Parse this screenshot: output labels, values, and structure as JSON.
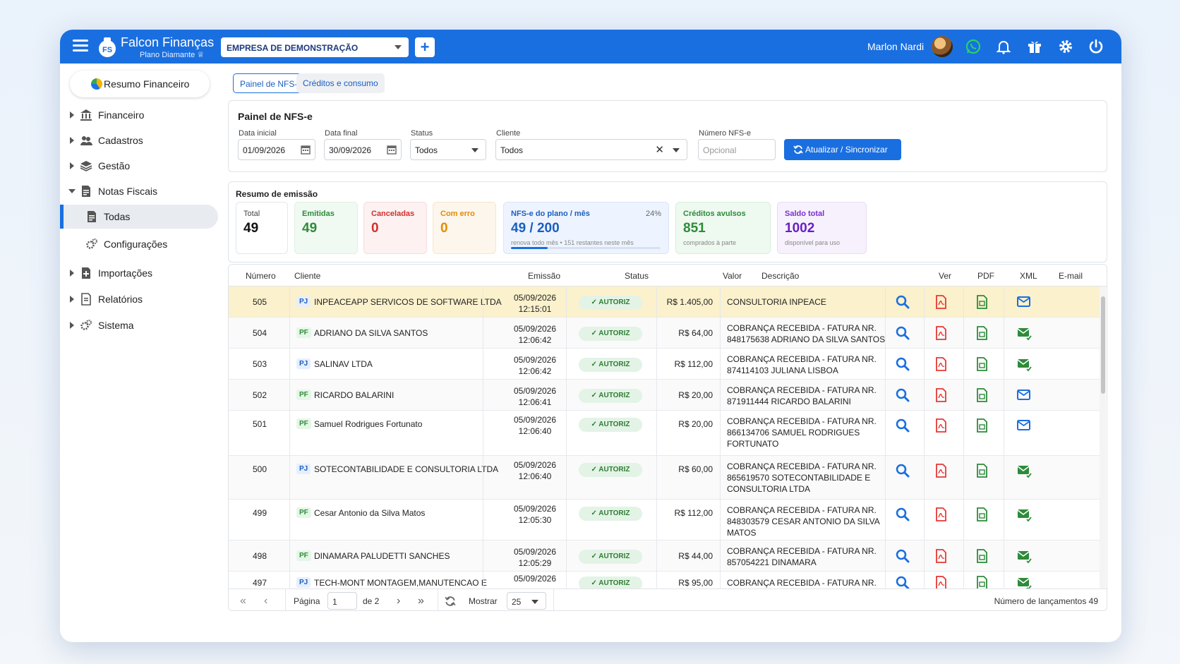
{
  "app": {
    "brand_name": "Falcon Finanças",
    "brand_plan": "Plano Diamante",
    "company": "EMPRESA DE DEMONSTRAÇÃO",
    "add_label": "+",
    "user_name": "Marlon Nardi",
    "accent_color": "#1a6fe0"
  },
  "sidebar": {
    "resumo_label": "Resumo Financeiro",
    "items": [
      {
        "label": "Financeiro",
        "icon": "bank-icon"
      },
      {
        "label": "Cadastros",
        "icon": "users-icon"
      },
      {
        "label": "Gestão",
        "icon": "layers-icon"
      },
      {
        "label": "Notas Fiscais",
        "icon": "invoice-icon"
      },
      {
        "label": "Todas",
        "icon": "document-icon"
      },
      {
        "label": "Configurações",
        "icon": "gears-icon"
      },
      {
        "label": "Importações",
        "icon": "import-icon"
      },
      {
        "label": "Relatórios",
        "icon": "report-icon"
      },
      {
        "label": "Sistema",
        "icon": "gears-icon"
      }
    ]
  },
  "tabs": [
    "Painel de NFS-e",
    "Créditos e consumo"
  ],
  "filters": {
    "title": "Painel de NFS-e",
    "data_inicial_label": "Data inicial",
    "data_inicial": "01/09/2026",
    "data_final_label": "Data final",
    "data_final": "30/09/2026",
    "status_label": "Status",
    "status": "Todos",
    "cliente_label": "Cliente",
    "cliente": "Todos",
    "numero_label": "Número NFS-e",
    "numero_placeholder": "Opcional",
    "sync_label": "Atualizar / Sincronizar"
  },
  "summary": {
    "title": "Resumo de emissão",
    "total_label": "Total",
    "total": "49",
    "emitidas_label": "Emitidas",
    "emitidas": "49",
    "canceladas_label": "Canceladas",
    "canceladas": "0",
    "erro_label": "Com erro",
    "erro": "0",
    "plano_label": "NFS-e do plano / mês",
    "plano_pct": "24%",
    "plano_value": "49 / 200",
    "plano_sub": "renova todo mês • 151 restantes neste mês",
    "plano_progress": 0.245,
    "avulsos_label": "Créditos avulsos",
    "avulsos": "851",
    "avulsos_sub": "comprados à parte",
    "saldo_label": "Saldo total",
    "saldo": "1002",
    "saldo_sub": "disponível para uso"
  },
  "table": {
    "headers": {
      "numero": "Número",
      "cliente": "Cliente",
      "emissao": "Emissão",
      "status": "Status",
      "valor": "Valor",
      "descricao": "Descrição",
      "ver": "Ver",
      "pdf": "PDF",
      "xml": "XML",
      "email": "E-mail"
    },
    "rows": [
      {
        "numero": "505",
        "tipo": "PJ",
        "cliente": "INPEACEAPP SERVICOS DE SOFTWARE LTDA",
        "data": "05/09/2026",
        "hora": "12:15:01",
        "status": "✓ AUTORIZ",
        "valor": "R$ 1.405,00",
        "descricao": [
          "CONSULTORIA INPEACE"
        ],
        "email_sent": false
      },
      {
        "numero": "504",
        "tipo": "PF",
        "cliente": "ADRIANO DA SILVA SANTOS",
        "data": "05/09/2026",
        "hora": "12:06:42",
        "status": "✓ AUTORIZ",
        "valor": "R$ 64,00",
        "descricao": [
          "COBRANÇA RECEBIDA - FATURA NR.",
          "848175638 ADRIANO DA SILVA SANTOS"
        ],
        "email_sent": true
      },
      {
        "numero": "503",
        "tipo": "PJ",
        "cliente": "SALINAV LTDA",
        "data": "05/09/2026",
        "hora": "12:06:42",
        "status": "✓ AUTORIZ",
        "valor": "R$ 112,00",
        "descricao": [
          "COBRANÇA RECEBIDA - FATURA NR.",
          "874114103 JULIANA LISBOA"
        ],
        "email_sent": true
      },
      {
        "numero": "502",
        "tipo": "PF",
        "cliente": "RICARDO BALARINI",
        "data": "05/09/2026",
        "hora": "12:06:41",
        "status": "✓ AUTORIZ",
        "valor": "R$ 20,00",
        "descricao": [
          "COBRANÇA RECEBIDA - FATURA NR.",
          "871911444 RICARDO BALARINI"
        ],
        "email_sent": false
      },
      {
        "numero": "501",
        "tipo": "PF",
        "cliente": "Samuel Rodrigues Fortunato",
        "data": "05/09/2026",
        "hora": "12:06:40",
        "status": "✓ AUTORIZ",
        "valor": "R$ 20,00",
        "descricao": [
          "COBRANÇA RECEBIDA - FATURA NR.",
          "866134706 SAMUEL RODRIGUES",
          "FORTUNATO"
        ],
        "email_sent": false
      },
      {
        "numero": "500",
        "tipo": "PJ",
        "cliente": "SOTECONTABILIDADE E CONSULTORIA LTDA",
        "data": "05/09/2026",
        "hora": "12:06:40",
        "status": "✓ AUTORIZ",
        "valor": "R$ 60,00",
        "descricao": [
          "COBRANÇA RECEBIDA - FATURA NR.",
          "865619570 SOTECONTABILIDADE E",
          "CONSULTORIA LTDA"
        ],
        "email_sent": true
      },
      {
        "numero": "499",
        "tipo": "PF",
        "cliente": "Cesar Antonio da Silva Matos",
        "data": "05/09/2026",
        "hora": "12:05:30",
        "status": "✓ AUTORIZ",
        "valor": "R$ 112,00",
        "descricao": [
          "COBRANÇA RECEBIDA - FATURA NR.",
          "848303579 CESAR ANTONIO DA SILVA",
          "MATOS"
        ],
        "email_sent": true
      },
      {
        "numero": "498",
        "tipo": "PF",
        "cliente": "DINAMARA PALUDETTI SANCHES",
        "data": "05/09/2026",
        "hora": "12:05:29",
        "status": "✓ AUTORIZ",
        "valor": "R$ 44,00",
        "descricao": [
          "COBRANÇA RECEBIDA - FATURA NR.",
          "857054221 DINAMARA"
        ],
        "email_sent": true
      },
      {
        "numero": "497",
        "tipo": "PJ",
        "cliente": "TECH-MONT MONTAGEM,MANUTENCAO E",
        "data": "05/09/2026",
        "hora": "",
        "status": "✓ AUTORIZ",
        "valor": "R$ 95,00",
        "descricao": [
          "COBRANÇA RECEBIDA - FATURA NR."
        ],
        "email_sent": true
      }
    ]
  },
  "pagination": {
    "pagina_label": "Página",
    "page": "1",
    "de_label": "de 2",
    "mostrar_label": "Mostrar",
    "per_page": "25",
    "total_label": "Número de lançamentos 49"
  }
}
